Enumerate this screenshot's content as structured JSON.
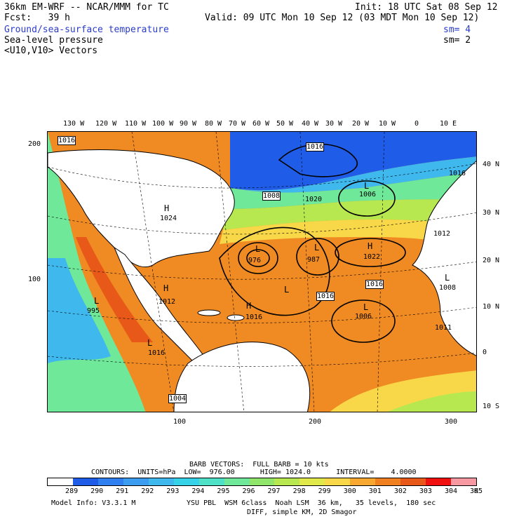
{
  "header": {
    "model_title": "36km EM-WRF -- NCAR/MMM for TC",
    "init": "Init: 18 UTC Sat 08 Sep 12",
    "fcst": "Fcst:   39 h",
    "valid": "Valid: 09 UTC Mon 10 Sep 12 (03 MDT Mon 10 Sep 12)",
    "fields": [
      {
        "label": "Ground/sea-surface temperature",
        "sm": "sm= 4",
        "color": "#2a3cc8"
      },
      {
        "label": "Sea-level pressure",
        "sm": "sm= 2",
        "color": "#000000"
      },
      {
        "label": "<U10,V10> Vectors",
        "sm": "",
        "color": "#000000"
      }
    ]
  },
  "axes": {
    "top_lon": [
      "130 W",
      "120 W",
      "110 W",
      "100 W",
      "90 W",
      "80 W",
      "70 W",
      "60 W",
      "50 W",
      "40 W",
      "30 W",
      "20 W",
      "10 W",
      "0",
      "10 E"
    ],
    "right_lat": [
      "40 N",
      "30 N",
      "20 N",
      "10 N",
      "0",
      "10 S"
    ],
    "left_grid": [
      "200",
      "100"
    ],
    "bottom_grid": [
      "100",
      "200",
      "300"
    ]
  },
  "map_labels": {
    "pressure_values": [
      "1016",
      "1016",
      "1008",
      "1020",
      "1006",
      "1016",
      "1012",
      "976",
      "987",
      "1022",
      "1016",
      "1008",
      "1016",
      "1016",
      "1006",
      "1011",
      "1012",
      "995",
      "1016",
      "1004",
      "1024"
    ],
    "highs_lows": [
      "L",
      "L",
      "H",
      "L",
      "H",
      "L",
      "H",
      "L",
      "H",
      "L",
      "L",
      "L",
      "H"
    ]
  },
  "footer": {
    "barb": "BARB VECTORS:  FULL BARB = 10 kts",
    "contours": "CONTOURS:  UNITS=hPa  LOW=  976.00      HIGH= 1024.0      INTERVAL=    4.0000",
    "model_info": "Model Info: V3.3.1 M",
    "physics": "YSU PBL  WSM 6class  Noah LSM  36 km,   35 levels,  180 sec",
    "physics2": "DIFF, simple KM, 2D Smagor",
    "unit": "K"
  },
  "colorbar": {
    "labels": [
      "289",
      "290",
      "291",
      "292",
      "293",
      "294",
      "295",
      "296",
      "297",
      "298",
      "299",
      "300",
      "301",
      "302",
      "303",
      "304",
      "305"
    ],
    "colors": [
      "#ffffff",
      "#1f5ce8",
      "#2f7ff0",
      "#3b9cf0",
      "#3fb8ee",
      "#35d2e8",
      "#4fe0c8",
      "#6fe89a",
      "#8fe66a",
      "#b8e850",
      "#e0e84a",
      "#f8d848",
      "#f8a830",
      "#f08020",
      "#e85818",
      "#f01010",
      "#f898a0"
    ]
  }
}
